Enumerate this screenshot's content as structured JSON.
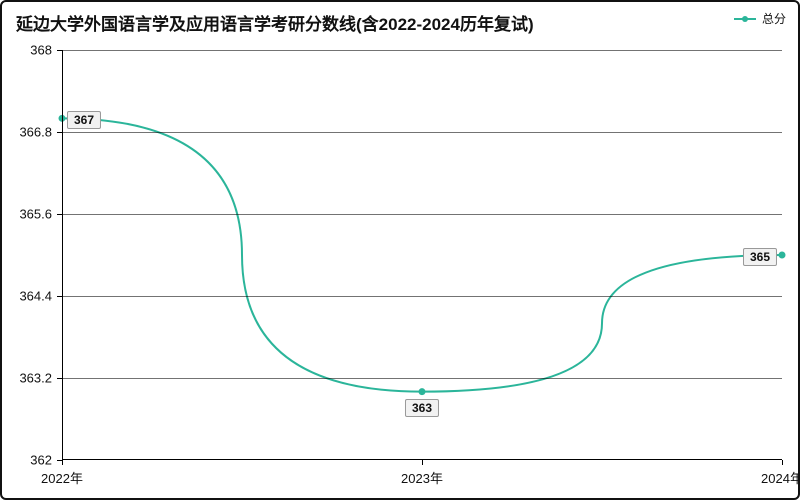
{
  "chart": {
    "type": "line",
    "title": "延边大学外国语言学及应用语言学考研分数线(含2022-2024历年复试)",
    "title_fontsize": 17,
    "title_weight": "700",
    "legend": {
      "label": "总分",
      "color": "#2bb59a"
    },
    "background_color": "#ffffff",
    "border_color": "#111111",
    "series": {
      "name": "总分",
      "color": "#2bb59a",
      "line_width": 2,
      "marker_radius": 3.5,
      "data": [
        {
          "x": "2022年",
          "y": 367,
          "label": "367"
        },
        {
          "x": "2023年",
          "y": 363,
          "label": "363"
        },
        {
          "x": "2024年",
          "y": 365,
          "label": "365"
        }
      ],
      "label_bg": "#f2f2f2",
      "label_border": "#999999"
    },
    "x_axis": {
      "categories": [
        "2022年",
        "2023年",
        "2024年"
      ],
      "font_size": 13
    },
    "y_axis": {
      "min": 362,
      "max": 368,
      "ticks": [
        362,
        363.2,
        364.4,
        365.6,
        366.8,
        368
      ],
      "tick_labels": [
        "362",
        "363.2",
        "364.4",
        "365.6",
        "366.8",
        "368"
      ],
      "grid_at": [
        363.2,
        364.4,
        365.6,
        366.8,
        368
      ],
      "font_size": 13
    }
  }
}
